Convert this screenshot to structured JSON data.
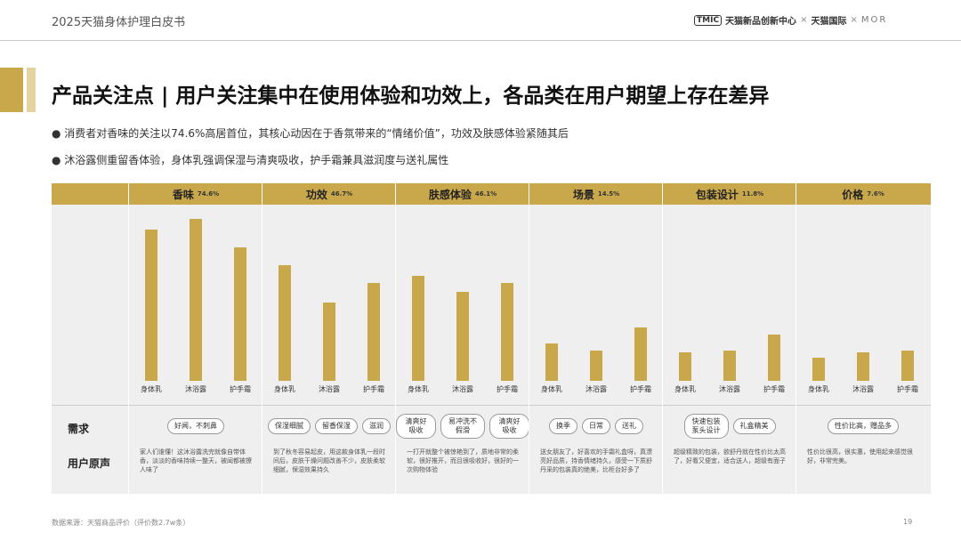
{
  "header": {
    "title": "2025天猫身体护理白皮书",
    "logo_mark": "TMIC",
    "brand": "天猫新品创新中心",
    "separator": "×",
    "brand2": "天猫国际",
    "brand3": "MOR"
  },
  "title": "产品关注点 | 用户关注集中在使用体验和功效上，各品类在用户期望上存在差异",
  "bullets": [
    "消费者对香味的关注以74.6%高居首位，其核心动因在于香氛带来的“情绪价值”，功效及肤感体验紧随其后",
    "沐浴露侧重留香体验，身体乳强调保湿与清爽吸收，护手霜兼具滋润度与送礼属性"
  ],
  "row_labels": [
    "需求",
    "用户原声"
  ],
  "chart_data": [
    {
      "type": "bar",
      "title": "香味",
      "share": 74.6,
      "share_label": "74.6%",
      "categories": [
        "身体乳",
        "沐浴露",
        "护手霜"
      ],
      "values": [
        85,
        91,
        75
      ],
      "ylim": [
        0,
        100
      ],
      "color": "#c9a84c",
      "tags": [
        "好闻，不刺鼻"
      ],
      "quote": "家人们谁懂！这沐浴露洗完就像自带体香，淡淡的香味持续一整天，被闻都被撩人味了"
    },
    {
      "type": "bar",
      "title": "功效",
      "share": 46.7,
      "share_label": "46.7%",
      "categories": [
        "身体乳",
        "沐浴露",
        "护手霜"
      ],
      "values": [
        65,
        44,
        55
      ],
      "ylim": [
        0,
        100
      ],
      "color": "#c9a84c",
      "tags": [
        "保湿细腻",
        "留香保湿",
        "滋润"
      ],
      "quote": "到了秋冬容易起皮，用这款身体乳一段时间后，皮肤干燥问题改善不少，皮肤柔软细腻，保湿效果持久"
    },
    {
      "type": "bar",
      "title": "肤感体验",
      "share": 46.1,
      "share_label": "46.1%",
      "categories": [
        "身体乳",
        "沐浴露",
        "护手霜"
      ],
      "values": [
        59,
        50,
        55
      ],
      "ylim": [
        0,
        100
      ],
      "color": "#c9a84c",
      "tags": [
        "清爽好吸收",
        "易冲洗不假滑",
        "清爽好吸收"
      ],
      "quote": "一打开就整个被惊艳到了，质地非常的柔软，很好推开，而且很吸收好，很好的一次购物体验"
    },
    {
      "type": "bar",
      "title": "场景",
      "share": 14.5,
      "share_label": "14.5%",
      "categories": [
        "身体乳",
        "沐浴露",
        "护手霜"
      ],
      "values": [
        21,
        17,
        30
      ],
      "ylim": [
        0,
        100
      ],
      "color": "#c9a84c",
      "tags": [
        "换季",
        "日常",
        "送礼"
      ],
      "quote": "送女朋友了，好喜欢的手霜礼盒呀，真漂亮好品质，持香情绪持久，感受一下质舒丹采的包装真的绝美，比柜台好多了"
    },
    {
      "type": "bar",
      "title": "包装设计",
      "share": 11.8,
      "share_label": "11.8%",
      "categories": [
        "身体乳",
        "沐浴露",
        "护手霜"
      ],
      "values": [
        16,
        17,
        26
      ],
      "ylim": [
        0,
        100
      ],
      "color": "#c9a84c",
      "tags": [
        "快速包装 泵头设计",
        "礼盒精美"
      ],
      "quote": "超级精致的包装，欲舒丹就在性价比太高了，好看又便宜，适合送人，超级有面子"
    },
    {
      "type": "bar",
      "title": "价格",
      "share": 7.6,
      "share_label": "7.6%",
      "categories": [
        "身体乳",
        "沐浴露",
        "护手霜"
      ],
      "values": [
        13,
        16,
        17
      ],
      "ylim": [
        0,
        100
      ],
      "color": "#c9a84c",
      "tags": [
        "性价比高，赠品多"
      ],
      "quote": "性价比很高，很实惠，使用起来感觉很好，非常完美。"
    }
  ],
  "footer": {
    "source": "数据来源：天猫商品评价（评价数2.7w条）",
    "page": "19"
  }
}
